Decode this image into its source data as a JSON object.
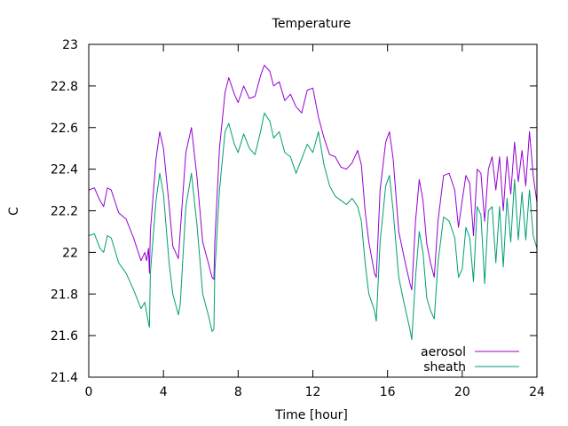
{
  "chart_data": {
    "type": "line",
    "title": "Temperature",
    "xlabel": "Time [hour]",
    "ylabel": "C",
    "xlim": [
      0,
      24
    ],
    "ylim": [
      21.4,
      23
    ],
    "xticks": [
      0,
      4,
      8,
      12,
      16,
      20,
      24
    ],
    "yticks": [
      21.4,
      21.6,
      21.8,
      22,
      22.2,
      22.4,
      22.6,
      22.8,
      23
    ],
    "grid": false,
    "legend_position": "bottom-right",
    "series": [
      {
        "name": "aerosol",
        "color": "#9400d3",
        "points": [
          [
            0.0,
            22.3
          ],
          [
            0.3,
            22.31
          ],
          [
            0.6,
            22.25
          ],
          [
            0.8,
            22.22
          ],
          [
            1.0,
            22.31
          ],
          [
            1.2,
            22.3
          ],
          [
            1.6,
            22.19
          ],
          [
            2.0,
            22.16
          ],
          [
            2.4,
            22.07
          ],
          [
            2.8,
            21.96
          ],
          [
            3.0,
            22.0
          ],
          [
            3.1,
            21.96
          ],
          [
            3.2,
            22.02
          ],
          [
            3.25,
            21.9
          ],
          [
            3.3,
            22.1
          ],
          [
            3.6,
            22.45
          ],
          [
            3.8,
            22.58
          ],
          [
            4.0,
            22.5
          ],
          [
            4.3,
            22.23
          ],
          [
            4.5,
            22.03
          ],
          [
            4.8,
            21.97
          ],
          [
            4.9,
            22.1
          ],
          [
            5.2,
            22.48
          ],
          [
            5.5,
            22.6
          ],
          [
            5.8,
            22.36
          ],
          [
            6.1,
            22.05
          ],
          [
            6.4,
            21.95
          ],
          [
            6.6,
            21.88
          ],
          [
            6.7,
            21.87
          ],
          [
            6.75,
            22.05
          ],
          [
            7.0,
            22.5
          ],
          [
            7.3,
            22.77
          ],
          [
            7.5,
            22.84
          ],
          [
            7.8,
            22.76
          ],
          [
            8.0,
            22.72
          ],
          [
            8.3,
            22.8
          ],
          [
            8.6,
            22.74
          ],
          [
            8.9,
            22.75
          ],
          [
            9.2,
            22.85
          ],
          [
            9.4,
            22.9
          ],
          [
            9.7,
            22.87
          ],
          [
            9.9,
            22.8
          ],
          [
            10.2,
            22.82
          ],
          [
            10.5,
            22.73
          ],
          [
            10.8,
            22.76
          ],
          [
            11.1,
            22.7
          ],
          [
            11.4,
            22.67
          ],
          [
            11.7,
            22.78
          ],
          [
            12.0,
            22.79
          ],
          [
            12.3,
            22.65
          ],
          [
            12.6,
            22.55
          ],
          [
            12.9,
            22.47
          ],
          [
            13.2,
            22.46
          ],
          [
            13.5,
            22.41
          ],
          [
            13.8,
            22.4
          ],
          [
            14.1,
            22.43
          ],
          [
            14.4,
            22.49
          ],
          [
            14.6,
            22.42
          ],
          [
            14.8,
            22.2
          ],
          [
            15.0,
            22.05
          ],
          [
            15.3,
            21.9
          ],
          [
            15.4,
            21.88
          ],
          [
            15.6,
            22.3
          ],
          [
            15.9,
            22.53
          ],
          [
            16.1,
            22.58
          ],
          [
            16.3,
            22.45
          ],
          [
            16.6,
            22.1
          ],
          [
            16.9,
            21.97
          ],
          [
            17.2,
            21.85
          ],
          [
            17.3,
            21.82
          ],
          [
            17.5,
            22.15
          ],
          [
            17.7,
            22.35
          ],
          [
            17.9,
            22.25
          ],
          [
            18.1,
            22.04
          ],
          [
            18.3,
            21.95
          ],
          [
            18.5,
            21.88
          ],
          [
            18.7,
            22.15
          ],
          [
            19.0,
            22.37
          ],
          [
            19.3,
            22.38
          ],
          [
            19.6,
            22.3
          ],
          [
            19.8,
            22.12
          ],
          [
            20.0,
            22.25
          ],
          [
            20.2,
            22.37
          ],
          [
            20.4,
            22.33
          ],
          [
            20.6,
            22.08
          ],
          [
            20.8,
            22.4
          ],
          [
            21.0,
            22.38
          ],
          [
            21.2,
            22.15
          ],
          [
            21.4,
            22.4
          ],
          [
            21.6,
            22.46
          ],
          [
            21.8,
            22.3
          ],
          [
            22.0,
            22.46
          ],
          [
            22.2,
            22.2
          ],
          [
            22.4,
            22.46
          ],
          [
            22.6,
            22.28
          ],
          [
            22.8,
            22.53
          ],
          [
            23.0,
            22.34
          ],
          [
            23.2,
            22.49
          ],
          [
            23.4,
            22.32
          ],
          [
            23.6,
            22.58
          ],
          [
            23.8,
            22.37
          ],
          [
            24.0,
            22.24
          ]
        ]
      },
      {
        "name": "sheath",
        "color": "#009e73",
        "points": [
          [
            0.0,
            22.08
          ],
          [
            0.3,
            22.09
          ],
          [
            0.6,
            22.02
          ],
          [
            0.8,
            22.0
          ],
          [
            1.0,
            22.08
          ],
          [
            1.2,
            22.07
          ],
          [
            1.6,
            21.95
          ],
          [
            2.0,
            21.9
          ],
          [
            2.4,
            21.82
          ],
          [
            2.8,
            21.73
          ],
          [
            3.0,
            21.76
          ],
          [
            3.2,
            21.66
          ],
          [
            3.25,
            21.64
          ],
          [
            3.3,
            21.9
          ],
          [
            3.6,
            22.25
          ],
          [
            3.8,
            22.38
          ],
          [
            4.0,
            22.28
          ],
          [
            4.3,
            21.95
          ],
          [
            4.5,
            21.8
          ],
          [
            4.8,
            21.7
          ],
          [
            4.9,
            21.75
          ],
          [
            5.2,
            22.22
          ],
          [
            5.5,
            22.38
          ],
          [
            5.8,
            22.13
          ],
          [
            6.1,
            21.8
          ],
          [
            6.4,
            21.7
          ],
          [
            6.6,
            21.62
          ],
          [
            6.7,
            21.63
          ],
          [
            6.75,
            21.9
          ],
          [
            7.0,
            22.3
          ],
          [
            7.3,
            22.58
          ],
          [
            7.5,
            22.62
          ],
          [
            7.8,
            22.52
          ],
          [
            8.0,
            22.48
          ],
          [
            8.3,
            22.57
          ],
          [
            8.6,
            22.5
          ],
          [
            8.9,
            22.47
          ],
          [
            9.2,
            22.58
          ],
          [
            9.4,
            22.67
          ],
          [
            9.7,
            22.63
          ],
          [
            9.9,
            22.55
          ],
          [
            10.2,
            22.58
          ],
          [
            10.5,
            22.48
          ],
          [
            10.8,
            22.46
          ],
          [
            11.1,
            22.38
          ],
          [
            11.4,
            22.45
          ],
          [
            11.7,
            22.52
          ],
          [
            12.0,
            22.48
          ],
          [
            12.3,
            22.58
          ],
          [
            12.6,
            22.42
          ],
          [
            12.9,
            22.32
          ],
          [
            13.2,
            22.27
          ],
          [
            13.5,
            22.25
          ],
          [
            13.8,
            22.23
          ],
          [
            14.1,
            22.26
          ],
          [
            14.4,
            22.22
          ],
          [
            14.6,
            22.15
          ],
          [
            14.8,
            21.95
          ],
          [
            15.0,
            21.8
          ],
          [
            15.3,
            21.72
          ],
          [
            15.4,
            21.67
          ],
          [
            15.6,
            22.05
          ],
          [
            15.9,
            22.32
          ],
          [
            16.1,
            22.37
          ],
          [
            16.3,
            22.2
          ],
          [
            16.6,
            21.88
          ],
          [
            16.9,
            21.75
          ],
          [
            17.2,
            21.63
          ],
          [
            17.3,
            21.58
          ],
          [
            17.5,
            21.88
          ],
          [
            17.7,
            22.1
          ],
          [
            17.9,
            22.0
          ],
          [
            18.1,
            21.78
          ],
          [
            18.3,
            21.72
          ],
          [
            18.5,
            21.68
          ],
          [
            18.7,
            21.95
          ],
          [
            19.0,
            22.17
          ],
          [
            19.3,
            22.15
          ],
          [
            19.6,
            22.07
          ],
          [
            19.8,
            21.88
          ],
          [
            20.0,
            21.92
          ],
          [
            20.2,
            22.12
          ],
          [
            20.4,
            22.07
          ],
          [
            20.6,
            21.86
          ],
          [
            20.8,
            22.22
          ],
          [
            21.0,
            22.18
          ],
          [
            21.2,
            21.85
          ],
          [
            21.4,
            22.2
          ],
          [
            21.6,
            22.22
          ],
          [
            21.8,
            21.95
          ],
          [
            22.0,
            22.22
          ],
          [
            22.2,
            21.93
          ],
          [
            22.4,
            22.26
          ],
          [
            22.6,
            22.05
          ],
          [
            22.8,
            22.35
          ],
          [
            23.0,
            22.06
          ],
          [
            23.2,
            22.29
          ],
          [
            23.4,
            22.06
          ],
          [
            23.6,
            22.3
          ],
          [
            23.8,
            22.08
          ],
          [
            24.0,
            22.02
          ]
        ]
      }
    ]
  }
}
